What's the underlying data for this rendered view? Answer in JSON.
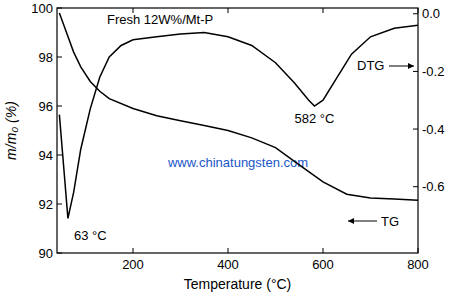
{
  "chart_data": {
    "type": "line",
    "title": "Fresh 12W%/Mt-P",
    "x_label": "Temperature (°C)",
    "y_label": "m/m₀ (%)",
    "xlim": [
      40,
      800
    ],
    "xticks": [
      200,
      400,
      600,
      800
    ],
    "ylim": [
      90,
      100
    ],
    "yticks": [
      90,
      92,
      94,
      96,
      98,
      100
    ],
    "y2lim": [
      -0.83,
      0.02
    ],
    "y2ticks": [
      {
        "value": 0,
        "label": "0.0"
      },
      -0.2,
      -0.4,
      -0.6
    ],
    "grid": false,
    "annotations": [
      "63 °C",
      "582 °C",
      "www.chinatungsten.com"
    ],
    "series": [
      {
        "name": "TG",
        "color": "#000000",
        "line_style": "solid",
        "axis": "y",
        "x": [
          45,
          60,
          75,
          90,
          110,
          130,
          150,
          200,
          250,
          300,
          350,
          400,
          450,
          500,
          550,
          600,
          650,
          700,
          750,
          800
        ],
        "values": [
          99.8,
          99.0,
          98.2,
          97.6,
          97.0,
          96.6,
          96.3,
          95.9,
          95.6,
          95.4,
          95.2,
          95.0,
          94.7,
          94.3,
          93.6,
          92.9,
          92.4,
          92.25,
          92.2,
          92.15
        ]
      },
      {
        "name": "DTG",
        "color": "#000000",
        "line_style": "solid",
        "axis": "y2",
        "x": [
          45,
          55,
          63,
          75,
          90,
          110,
          130,
          150,
          175,
          200,
          250,
          300,
          350,
          400,
          450,
          500,
          540,
          570,
          582,
          600,
          630,
          660,
          700,
          750,
          800
        ],
        "values": [
          -0.35,
          -0.55,
          -0.71,
          -0.62,
          -0.47,
          -0.33,
          -0.22,
          -0.15,
          -0.11,
          -0.09,
          -0.08,
          -0.07,
          -0.065,
          -0.08,
          -0.11,
          -0.17,
          -0.24,
          -0.3,
          -0.32,
          -0.3,
          -0.22,
          -0.14,
          -0.08,
          -0.05,
          -0.04
        ]
      }
    ]
  }
}
